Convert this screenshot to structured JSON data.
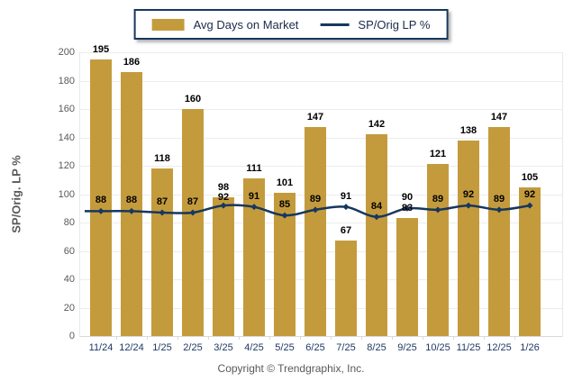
{
  "legend": {
    "bar_label": "Avg Days on Market",
    "line_label": "SP/Orig LP %"
  },
  "y_axis": {
    "title": "SP/Orig. LP %"
  },
  "footer": {
    "copyright": "Copyright © Trendgraphix, Inc."
  },
  "colors": {
    "bar": "#C49B3C",
    "line": "#17375E",
    "x_label": "#1F3864",
    "y_label": "#595959",
    "value_label": "#000000",
    "grid": "#ECECEC",
    "legend_border": "#17375E"
  },
  "chart_data": {
    "type": "bar+line",
    "title": "",
    "xlabel": "",
    "ylabel": "SP/Orig. LP %",
    "ylim": [
      0,
      200
    ],
    "y_tick_step": 20,
    "grid": true,
    "legend_position": "top-center",
    "value_labels": true,
    "categories": [
      "11/24",
      "12/24",
      "1/25",
      "2/25",
      "3/25",
      "4/25",
      "5/25",
      "6/25",
      "7/25",
      "8/25",
      "9/25",
      "10/25",
      "11/25",
      "12/25",
      "1/26"
    ],
    "series": [
      {
        "name": "Avg Days on Market",
        "type": "bar",
        "values": [
          195,
          186,
          118,
          160,
          98,
          111,
          101,
          147,
          67,
          142,
          83,
          121,
          138,
          147,
          105
        ]
      },
      {
        "name": "SP/Orig LP %",
        "type": "line",
        "values": [
          88,
          88,
          87,
          87,
          92,
          91,
          85,
          89,
          91,
          84,
          90,
          89,
          92,
          89,
          92
        ]
      }
    ]
  }
}
